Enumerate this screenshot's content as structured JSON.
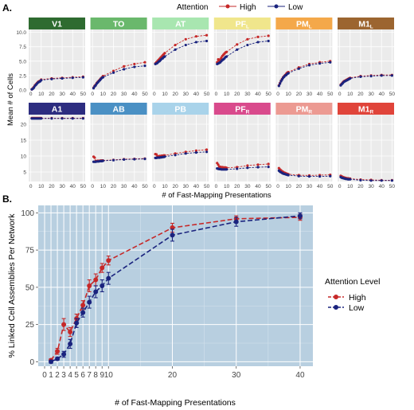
{
  "panel_labels": {
    "a": "A.",
    "b": "B."
  },
  "colors": {
    "high": "#c62828",
    "low": "#1a237e",
    "panel_bg": "#ebebeb",
    "grid": "#ffffff",
    "b_bg": "#b8cfe0"
  },
  "top_legend": {
    "title": "Attention",
    "high": "High",
    "low": "Low"
  },
  "facet_ylabel": "Mean # of Cells",
  "facet_xlabel": "# of Fast-Mapping Presentations",
  "facet_x_ticks": [
    "0",
    "10",
    "20",
    "30",
    "40",
    "50"
  ],
  "facet_row1_ticks": [
    "0.0",
    "2.5",
    "5.0",
    "7.5",
    "10.0"
  ],
  "facet_row2_ticks": [
    "5",
    "10",
    "15",
    "20"
  ],
  "panel_b": {
    "ylabel": "% Linked Cell Assemblies Per Network",
    "xlabel": "# of Fast-Mapping Presentations",
    "legend_title": "Attention Level",
    "legend_high": "High",
    "legend_low": "Low",
    "y_ticks": [
      "0",
      "25",
      "50",
      "75",
      "100"
    ],
    "x_ticks": [
      "0",
      "1",
      "2",
      "3",
      "4",
      "5",
      "6",
      "7",
      "8",
      "9",
      "10",
      "20",
      "30",
      "40"
    ]
  },
  "chart_data": [
    {
      "type": "line",
      "panel": "A",
      "x": [
        1,
        2,
        3,
        4,
        5,
        6,
        7,
        8,
        9,
        10,
        20,
        30,
        40,
        50
      ],
      "facets": [
        {
          "title": "V1",
          "sub": "",
          "color": "#2e6b30",
          "title_color": "#ffffff",
          "row": 1,
          "ylim": [
            0,
            10.5
          ],
          "series": [
            {
              "name": "High",
              "values": [
                0.1,
                0.3,
                0.5,
                0.8,
                1.0,
                1.2,
                1.4,
                1.5,
                1.6,
                1.8,
                2.0,
                2.1,
                2.2,
                2.3
              ]
            },
            {
              "name": "Low",
              "values": [
                0.1,
                0.2,
                0.4,
                0.7,
                0.9,
                1.1,
                1.3,
                1.4,
                1.5,
                1.7,
                1.9,
                2.0,
                2.1,
                2.2
              ]
            }
          ]
        },
        {
          "title": "TO",
          "sub": "",
          "color": "#6ab86c",
          "title_color": "#ffffff",
          "row": 1,
          "ylim": [
            0,
            10.5
          ],
          "series": [
            {
              "name": "High",
              "values": [
                0.4,
                0.7,
                0.9,
                1.2,
                1.4,
                1.6,
                1.8,
                2.0,
                2.2,
                2.4,
                3.3,
                4.1,
                4.5,
                4.8
              ]
            },
            {
              "name": "Low",
              "values": [
                0.3,
                0.6,
                0.8,
                1.1,
                1.3,
                1.5,
                1.7,
                1.9,
                2.1,
                2.2,
                3.0,
                3.6,
                4.0,
                4.2
              ]
            }
          ]
        },
        {
          "title": "AT",
          "sub": "",
          "color": "#a8e6b0",
          "title_color": "#ffffff",
          "row": 1,
          "ylim": [
            0,
            10.5
          ],
          "series": [
            {
              "name": "High",
              "values": [
                4.6,
                4.8,
                5.0,
                5.2,
                5.4,
                5.6,
                5.8,
                6.0,
                6.2,
                6.4,
                7.8,
                8.8,
                9.3,
                9.5
              ]
            },
            {
              "name": "Low",
              "values": [
                4.5,
                4.6,
                4.7,
                4.9,
                5.0,
                5.2,
                5.4,
                5.5,
                5.7,
                5.8,
                7.0,
                7.8,
                8.3,
                8.5
              ]
            }
          ]
        },
        {
          "title": "PF",
          "sub": "L",
          "color": "#f0e68c",
          "title_color": "#ffffff",
          "row": 1,
          "ylim": [
            0,
            10.5
          ],
          "series": [
            {
              "name": "High",
              "values": [
                4.8,
                5.3,
                5.1,
                5.3,
                5.6,
                5.9,
                6.1,
                6.3,
                6.5,
                6.6,
                7.9,
                8.8,
                9.2,
                9.4
              ]
            },
            {
              "name": "Low",
              "values": [
                4.5,
                4.6,
                4.7,
                4.8,
                5.0,
                5.2,
                5.3,
                5.5,
                5.7,
                5.8,
                7.0,
                7.8,
                8.3,
                8.5
              ]
            }
          ]
        },
        {
          "title": "PM",
          "sub": "L",
          "color": "#f4a84a",
          "title_color": "#ffffff",
          "row": 1,
          "ylim": [
            0,
            10.5
          ],
          "series": [
            {
              "name": "High",
              "values": [
                0.8,
                1.2,
                1.6,
                1.9,
                2.2,
                2.4,
                2.6,
                2.8,
                3.0,
                3.1,
                3.9,
                4.5,
                4.8,
                5.0
              ]
            },
            {
              "name": "Low",
              "values": [
                0.7,
                1.1,
                1.5,
                1.8,
                2.1,
                2.3,
                2.5,
                2.6,
                2.8,
                2.9,
                3.7,
                4.3,
                4.6,
                4.8
              ]
            }
          ]
        },
        {
          "title": "M1",
          "sub": "L",
          "color": "#9c6530",
          "title_color": "#ffffff",
          "row": 1,
          "ylim": [
            0,
            10.5
          ],
          "series": [
            {
              "name": "High",
              "values": [
                0.9,
                1.1,
                1.3,
                1.5,
                1.6,
                1.7,
                1.8,
                1.9,
                2.0,
                2.1,
                2.4,
                2.5,
                2.6,
                2.6
              ]
            },
            {
              "name": "Low",
              "values": [
                0.8,
                1.0,
                1.2,
                1.4,
                1.5,
                1.6,
                1.7,
                1.8,
                1.9,
                2.0,
                2.3,
                2.4,
                2.5,
                2.5
              ]
            }
          ]
        },
        {
          "title": "A1",
          "sub": "",
          "color": "#2d2d80",
          "title_color": "#ffffff",
          "row": 2,
          "ylim": [
            2,
            23
          ],
          "series": [
            {
              "name": "High",
              "values": [
                21.9,
                21.9,
                21.9,
                21.9,
                21.9,
                21.9,
                21.9,
                21.9,
                21.9,
                21.9,
                21.9,
                21.9,
                21.9,
                21.9
              ]
            },
            {
              "name": "Low",
              "values": [
                21.8,
                21.8,
                21.8,
                21.8,
                21.8,
                21.8,
                21.8,
                21.8,
                21.8,
                21.8,
                21.8,
                21.8,
                21.8,
                21.8
              ]
            }
          ]
        },
        {
          "title": "AB",
          "sub": "",
          "color": "#4a90c4",
          "title_color": "#ffffff",
          "row": 2,
          "ylim": [
            2,
            23
          ],
          "series": [
            {
              "name": "High",
              "values": [
                9.8,
                9.5,
                8.4,
                8.4,
                8.5,
                8.5,
                8.5,
                8.6,
                8.6,
                8.6,
                8.8,
                9.0,
                9.1,
                9.2
              ]
            },
            {
              "name": "Low",
              "values": [
                8.2,
                8.2,
                8.2,
                8.3,
                8.3,
                8.3,
                8.4,
                8.4,
                8.4,
                8.5,
                8.7,
                8.9,
                9.0,
                9.1
              ]
            }
          ]
        },
        {
          "title": "PB",
          "sub": "",
          "color": "#a9d3ea",
          "title_color": "#ffffff",
          "row": 2,
          "ylim": [
            2,
            23
          ],
          "series": [
            {
              "name": "High",
              "values": [
                10.6,
                10.5,
                9.9,
                9.9,
                10.0,
                10.0,
                10.1,
                10.1,
                10.2,
                10.2,
                10.8,
                11.3,
                11.7,
                12.0
              ]
            },
            {
              "name": "Low",
              "values": [
                9.4,
                9.4,
                9.5,
                9.5,
                9.5,
                9.6,
                9.6,
                9.7,
                9.7,
                9.8,
                10.3,
                10.8,
                11.1,
                11.3
              ]
            }
          ]
        },
        {
          "title": "PF",
          "sub": "R",
          "color": "#d94a8c",
          "title_color": "#ffffff",
          "row": 2,
          "ylim": [
            2,
            23
          ],
          "series": [
            {
              "name": "High",
              "values": [
                7.8,
                7.3,
                6.7,
                6.6,
                6.5,
                6.5,
                6.4,
                6.4,
                6.4,
                6.3,
                6.5,
                7.0,
                7.3,
                7.5
              ]
            },
            {
              "name": "Low",
              "values": [
                6.1,
                6.0,
                5.9,
                5.9,
                5.8,
                5.8,
                5.8,
                5.8,
                5.8,
                5.8,
                6.0,
                6.3,
                6.5,
                6.6
              ]
            }
          ]
        },
        {
          "title": "PM",
          "sub": "R",
          "color": "#ec9a92",
          "title_color": "#ffffff",
          "row": 2,
          "ylim": [
            2,
            23
          ],
          "series": [
            {
              "name": "High",
              "values": [
                6.2,
                5.8,
                5.5,
                5.2,
                5.0,
                4.8,
                4.7,
                4.5,
                4.4,
                4.3,
                4.0,
                3.9,
                4.0,
                4.1
              ]
            },
            {
              "name": "Low",
              "values": [
                5.4,
                5.1,
                4.9,
                4.7,
                4.5,
                4.4,
                4.3,
                4.2,
                4.1,
                4.0,
                3.7,
                3.6,
                3.6,
                3.7
              ]
            }
          ]
        },
        {
          "title": "M1",
          "sub": "R",
          "color": "#e0443a",
          "title_color": "#ffffff",
          "row": 2,
          "ylim": [
            2,
            23
          ],
          "series": [
            {
              "name": "High",
              "values": [
                3.8,
                3.6,
                3.4,
                3.3,
                3.2,
                3.1,
                3.0,
                3.0,
                2.9,
                2.9,
                2.6,
                2.5,
                2.4,
                2.4
              ]
            },
            {
              "name": "Low",
              "values": [
                3.4,
                3.2,
                3.1,
                3.0,
                2.9,
                2.8,
                2.8,
                2.7,
                2.7,
                2.7,
                2.4,
                2.3,
                2.3,
                2.3
              ]
            }
          ]
        }
      ]
    },
    {
      "type": "line",
      "panel": "B",
      "x": [
        1,
        2,
        3,
        4,
        5,
        6,
        7,
        8,
        9,
        10,
        20,
        30,
        40
      ],
      "xlim": [
        -1,
        42
      ],
      "ylim": [
        -3,
        105
      ],
      "series": [
        {
          "name": "High",
          "values": [
            1,
            7,
            25,
            20,
            29,
            38,
            51,
            55,
            63,
            68,
            90,
            96,
            97
          ],
          "err": [
            1,
            2,
            4,
            3,
            3,
            3,
            4,
            4,
            3,
            3,
            3,
            2,
            2
          ]
        },
        {
          "name": "Low",
          "values": [
            0,
            2,
            5,
            12,
            26,
            33,
            40,
            47,
            51,
            56,
            85,
            94,
            98
          ],
          "err": [
            1,
            1,
            2,
            3,
            3,
            3,
            4,
            4,
            4,
            4,
            4,
            3,
            2
          ]
        }
      ]
    }
  ]
}
